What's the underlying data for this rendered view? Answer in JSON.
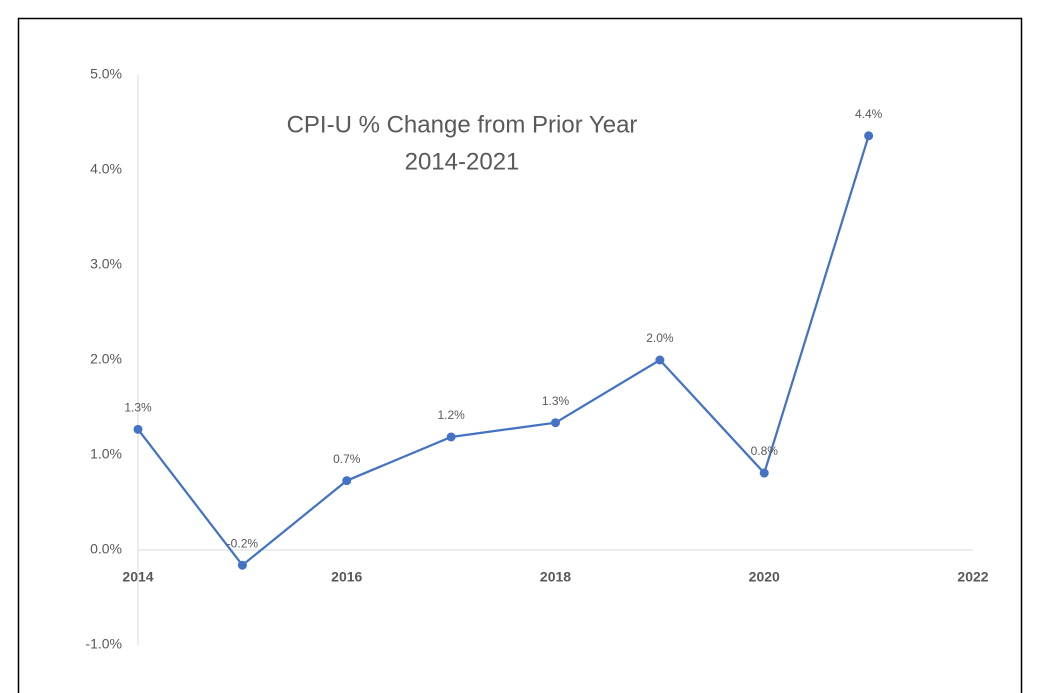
{
  "chart_data": {
    "type": "line",
    "title": "CPI-U % Change from Prior Year",
    "subtitle": "2014-2021",
    "x": [
      2014,
      2015,
      2016,
      2017,
      2018,
      2019,
      2020,
      2021
    ],
    "series": [
      {
        "name": "CPI-U",
        "color": "#4472c4",
        "values": [
          1.27,
          -0.16,
          0.73,
          1.19,
          1.34,
          2.0,
          0.81,
          4.36
        ],
        "value_labels": [
          "1.3%",
          "-0.2%",
          "0.7%",
          "1.2%",
          "1.3%",
          "2.0%",
          "0.8%",
          "4.4%"
        ]
      }
    ],
    "xlim": [
      2014,
      2022
    ],
    "xticks": [
      2014,
      2016,
      2018,
      2020,
      2022
    ],
    "ylim": [
      -1,
      5
    ],
    "yticks": [
      {
        "value": -1,
        "label": "-1.0%"
      },
      {
        "value": 0,
        "label": "0.0%"
      },
      {
        "value": 1,
        "label": "1.0%"
      },
      {
        "value": 2,
        "label": "2.0%"
      },
      {
        "value": 3,
        "label": "3.0%"
      },
      {
        "value": 4,
        "label": "4.0%"
      },
      {
        "value": 5,
        "label": "5.0%"
      }
    ],
    "grid": false,
    "markers": true
  }
}
